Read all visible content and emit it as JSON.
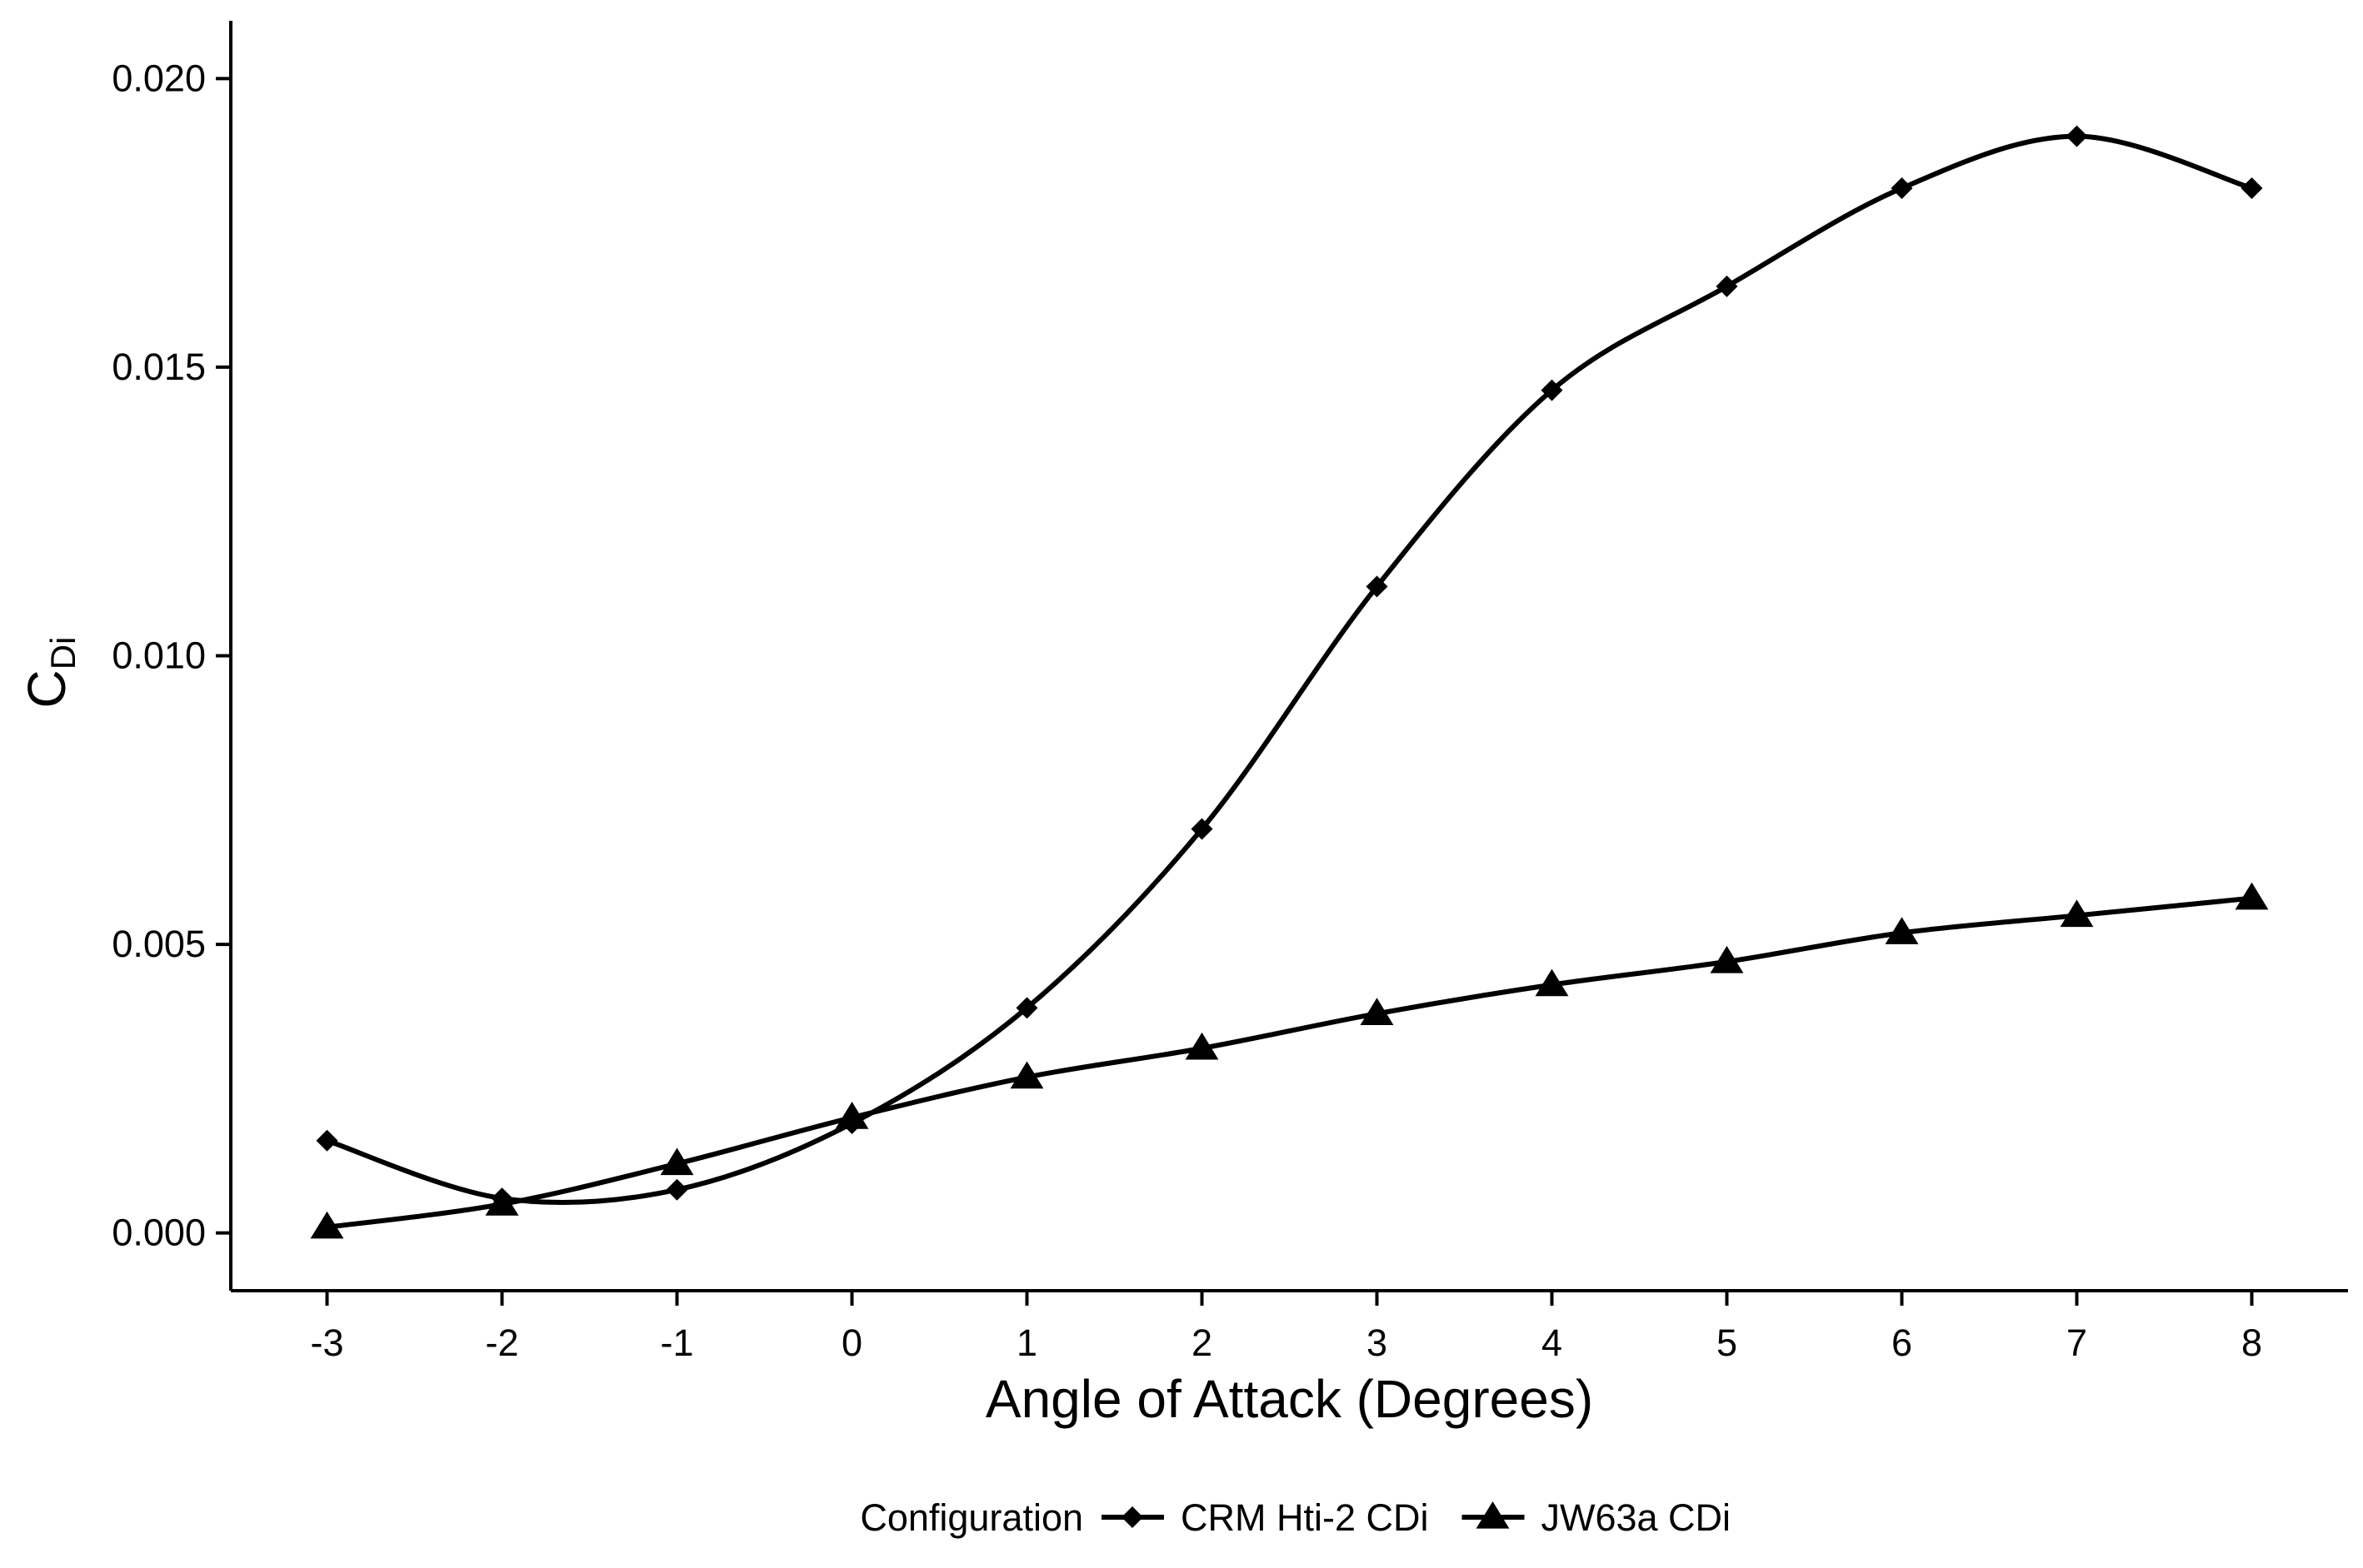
{
  "chart_data": {
    "type": "line",
    "title": "",
    "xlabel": "Angle of Attack (Degrees)",
    "ylabel": {
      "main": "C",
      "subscript": "Di"
    },
    "x": [
      -3,
      -2,
      -1,
      0,
      1,
      2,
      3,
      4,
      5,
      6,
      7,
      8
    ],
    "xlim": [
      -3.55,
      8.55
    ],
    "ylim": [
      -0.001,
      0.021
    ],
    "xticks": [
      "-3",
      "-2",
      "-1",
      "0",
      "1",
      "2",
      "3",
      "4",
      "5",
      "6",
      "7",
      "8"
    ],
    "yticks": [
      "0.000",
      "0.005",
      "0.010",
      "0.015",
      "0.020"
    ],
    "grid": false,
    "legend": {
      "title": "Configuration",
      "placement": "bottom"
    },
    "series": [
      {
        "name": "CRM Hti-2 CDi",
        "marker": "diamond",
        "color": "#000000",
        "values": [
          0.0016,
          0.0006,
          0.00075,
          0.0019,
          0.0039,
          0.007,
          0.0112,
          0.0146,
          0.0164,
          0.0181,
          0.019,
          0.0181
        ]
      },
      {
        "name": "JW63a CDi",
        "marker": "triangle",
        "color": "#000000",
        "values": [
          0.0001,
          0.0005,
          0.0012,
          0.002,
          0.0027,
          0.0032,
          0.0038,
          0.0043,
          0.0047,
          0.0052,
          0.0055,
          0.0058
        ]
      }
    ]
  }
}
